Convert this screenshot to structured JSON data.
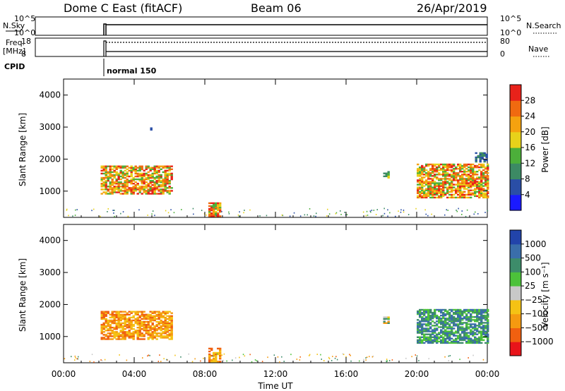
{
  "header": {
    "station": "Dome C East (fitACF)",
    "beam": "Beam 06",
    "date": "26/Apr/2019"
  },
  "top_panels": {
    "nsky_label": "N.Sky",
    "nsky_hi": "10^5",
    "nsky_lo": "10^0",
    "nsearch_label": "N.Search",
    "freq_label": "Freq.",
    "freq_unit": "[MHz]",
    "freq_hi": "18",
    "freq_lo": "8",
    "nave_hi": "80",
    "nave_lo": "0",
    "nave_label": "Nave",
    "cpid_label": "CPID",
    "cpid_value": "normal 150"
  },
  "chart_data": [
    {
      "type": "heatmap",
      "panel": "power",
      "ylabel": "Slant Range [km]",
      "ylim": [
        180,
        4500
      ],
      "yticks": [
        "1000",
        "2000",
        "3000",
        "4000"
      ],
      "xlim": [
        0,
        24
      ],
      "colorbar": {
        "label": "Power [dB]",
        "ticks": [
          "4",
          "8",
          "12",
          "16",
          "20",
          "24",
          "28"
        ],
        "range": [
          0,
          32
        ],
        "colors": [
          "#1a1aff",
          "#2a4ea6",
          "#3c8a64",
          "#4caf3a",
          "#e8d21a",
          "#f5a20f",
          "#f06a10",
          "#e8221a"
        ]
      },
      "echo_regions": [
        {
          "t0": 2.1,
          "t1": 6.1,
          "r0": 900,
          "r1": 1780,
          "level": "strong"
        },
        {
          "t0": 18.1,
          "t1": 18.4,
          "r0": 1400,
          "r1": 1600,
          "level": "medium"
        },
        {
          "t0": 20.0,
          "t1": 24.0,
          "r0": 780,
          "r1": 1850,
          "level": "strong"
        },
        {
          "t0": 8.2,
          "t1": 8.9,
          "r0": 200,
          "r1": 650,
          "level": "strong"
        },
        {
          "t0": 4.9,
          "t1": 4.95,
          "r0": 2900,
          "r1": 3000,
          "level": "weak"
        },
        {
          "t0": 23.3,
          "t1": 24.0,
          "r0": 1900,
          "r1": 2200,
          "level": "weak"
        }
      ]
    },
    {
      "type": "heatmap",
      "panel": "velocity",
      "ylabel": "Slant Range [km]",
      "xlabel": "Time UT",
      "ylim": [
        180,
        4500
      ],
      "yticks": [
        "1000",
        "2000",
        "3000",
        "4000"
      ],
      "xlim": [
        0,
        24
      ],
      "xticks": [
        "00:00",
        "04:00",
        "08:00",
        "12:00",
        "16:00",
        "20:00",
        "00:00"
      ],
      "colorbar": {
        "label": "Velocity [m s⁻¹]",
        "ticks": [
          "1000",
          "500",
          "100",
          "25",
          "−25",
          "−100",
          "−500",
          "−1000"
        ],
        "colors": [
          "#2244aa",
          "#3a6eaa",
          "#3d8c6a",
          "#4cc23a",
          "#c8c8c8",
          "#f5c214",
          "#f59a10",
          "#f06010",
          "#e8141a"
        ]
      },
      "echo_regions": [
        {
          "t0": 2.1,
          "t1": 6.1,
          "r0": 900,
          "r1": 1780,
          "level": "negative"
        },
        {
          "t0": 18.1,
          "t1": 18.4,
          "r0": 1400,
          "r1": 1600,
          "level": "mixed"
        },
        {
          "t0": 20.0,
          "t1": 24.0,
          "r0": 780,
          "r1": 1850,
          "level": "positive"
        },
        {
          "t0": 8.2,
          "t1": 8.9,
          "r0": 200,
          "r1": 650,
          "level": "negative"
        }
      ]
    }
  ]
}
